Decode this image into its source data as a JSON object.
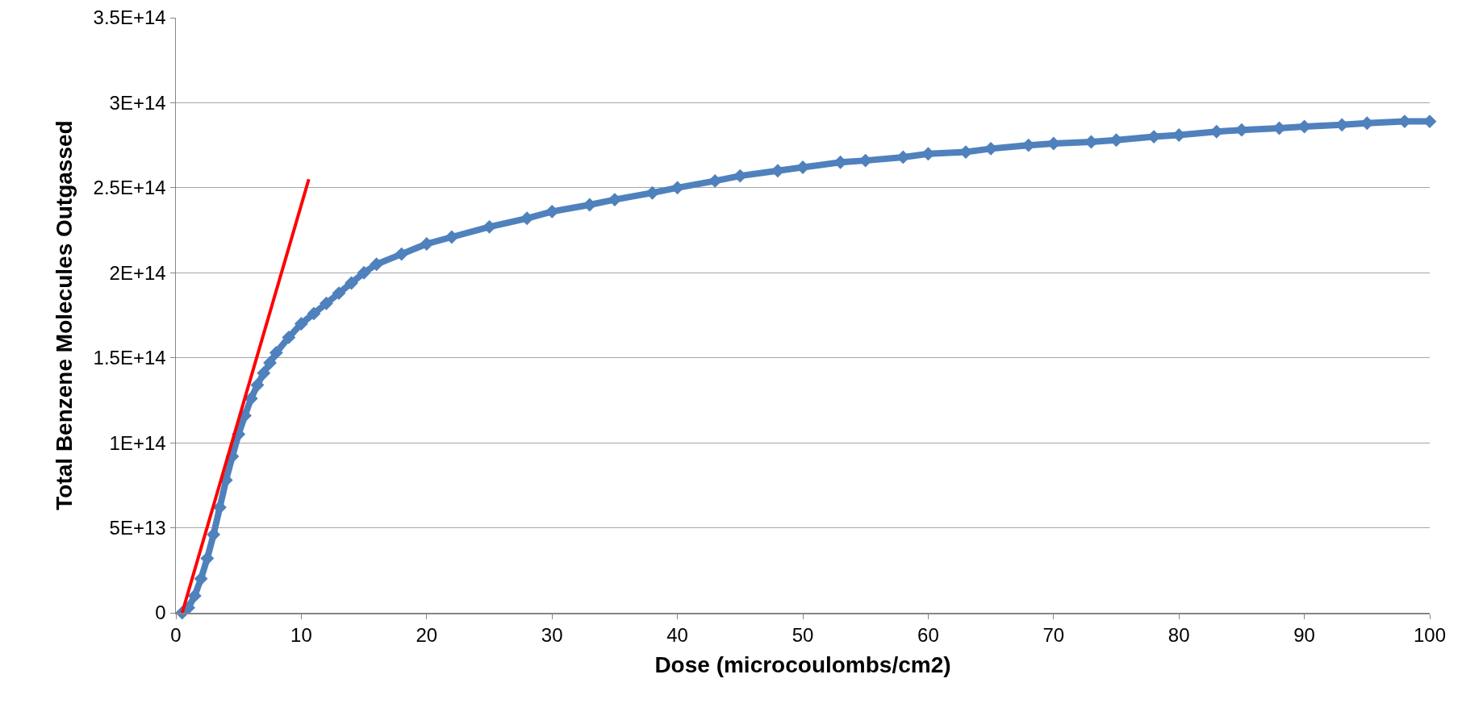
{
  "chart_data": {
    "type": "line",
    "xlabel": "Dose (microcoulombs/cm2)",
    "ylabel": "Total Benzene Molecules Outgassed",
    "xlim": [
      0,
      100
    ],
    "xticks": [
      0,
      10,
      20,
      30,
      40,
      50,
      60,
      70,
      80,
      90,
      100
    ],
    "ylim": [
      0,
      350000000000000.0
    ],
    "yticks": [
      0,
      {
        "value": 50000000000000.0,
        "label": "5E+13"
      },
      {
        "value": 100000000000000.0,
        "label": "1E+14"
      },
      {
        "value": 150000000000000.0,
        "label": "1.5E+14"
      },
      {
        "value": 200000000000000.0,
        "label": "2E+14"
      },
      {
        "value": 250000000000000.0,
        "label": "2.5E+14"
      },
      {
        "value": 300000000000000.0,
        "label": "3E+14"
      },
      {
        "value": 350000000000000.0,
        "label": "3.5E+14"
      }
    ],
    "grid": "y",
    "series": [
      {
        "type": "line",
        "marker": "diamond",
        "color": "#4f81bd",
        "x": [
          0.5,
          1,
          1.5,
          2,
          2.5,
          3,
          3.5,
          4,
          4.5,
          5,
          5.5,
          6,
          6.5,
          7,
          7.5,
          8,
          9,
          10,
          11,
          12,
          13,
          14,
          15,
          16,
          18,
          20,
          22,
          25,
          28,
          30,
          33,
          35,
          38,
          40,
          43,
          45,
          48,
          50,
          53,
          55,
          58,
          60,
          63,
          65,
          68,
          70,
          73,
          75,
          78,
          80,
          83,
          85,
          88,
          90,
          93,
          95,
          98,
          100
        ],
        "values": [
          0,
          3000000000000.0,
          10000000000000.0,
          20000000000000.0,
          32000000000000.0,
          46000000000000.0,
          62000000000000.0,
          78000000000000.0,
          92000000000000.0,
          105000000000000.0,
          116000000000000.0,
          126000000000000.0,
          134000000000000.0,
          141000000000000.0,
          147000000000000.0,
          153000000000000.0,
          162000000000000.0,
          170000000000000.0,
          176000000000000.0,
          182000000000000.0,
          188000000000000.0,
          194000000000000.0,
          200000000000000.0,
          205000000000000.0,
          211000000000000.0,
          217000000000000.0,
          221000000000000.0,
          227000000000000.0,
          232000000000000.0,
          236000000000000.0,
          240000000000000.0,
          243000000000000.0,
          247000000000000.0,
          250000000000000.0,
          254000000000000.0,
          257000000000000.0,
          260000000000000.0,
          262000000000000.0,
          265000000000000.0,
          266000000000000.0,
          268000000000000.0,
          270000000000000.0,
          271000000000000.0,
          273000000000000.0,
          275000000000000.0,
          276000000000000.0,
          277000000000000.0,
          278000000000000.0,
          280000000000000.0,
          281000000000000.0,
          283000000000000.0,
          284000000000000.0,
          285000000000000.0,
          286000000000000.0,
          287000000000000.0,
          288000000000000.0,
          289000000000000.0,
          289000000000000.0
        ]
      },
      {
        "type": "line",
        "marker": "none",
        "color": "#ff0000",
        "x": [
          0.5,
          10.6
        ],
        "values": [
          0,
          255000000000000.0
        ]
      }
    ]
  }
}
